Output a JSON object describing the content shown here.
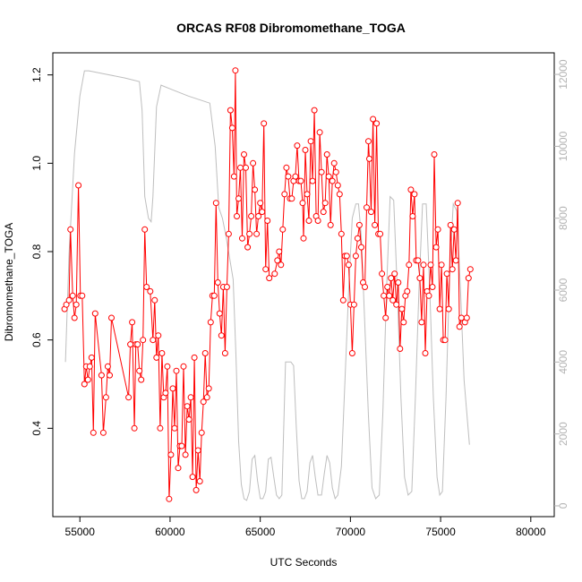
{
  "chart_data": {
    "type": "line",
    "title": "ORCAS RF08 Dibromomethane_TOGA",
    "xlabel": "UTC Seconds",
    "ylabel": "Dibromomethane_TOGA",
    "xlim": [
      53500,
      81300
    ],
    "ylim": [
      0.2,
      1.25
    ],
    "y2lim": [
      -300,
      12600
    ],
    "x_ticks": [
      55000,
      60000,
      65000,
      70000,
      75000,
      80000
    ],
    "y_ticks": [
      0.4,
      0.6,
      0.8,
      1.0,
      1.2
    ],
    "y2_ticks": [
      0,
      2000,
      4000,
      6000,
      8000,
      10000,
      12000
    ],
    "x_tick_labels": [
      "55000",
      "60000",
      "65000",
      "70000",
      "75000",
      "80000"
    ],
    "y_tick_labels": [
      "0.4",
      "0.6",
      "0.8",
      "1.0",
      "1.2"
    ],
    "y2_tick_labels": [
      "0",
      "2000",
      "4000",
      "6000",
      "8000",
      "10000",
      "12000"
    ],
    "grid": false,
    "colors": {
      "series": "#ff0000",
      "altitude": "#bebebe",
      "axes": "#000000",
      "right_axis": "#b3b3b3"
    },
    "series": [
      {
        "values": [
          [
            54150,
            0.67
          ],
          [
            54250,
            0.68
          ],
          [
            54400,
            0.69
          ],
          [
            54480,
            0.85
          ],
          [
            54600,
            0.7
          ],
          [
            54700,
            0.65
          ],
          [
            54800,
            0.68
          ],
          [
            54920,
            0.95
          ],
          [
            55030,
            0.7
          ],
          [
            55130,
            0.7
          ],
          [
            55250,
            0.5
          ],
          [
            55350,
            0.54
          ],
          [
            55450,
            0.51
          ],
          [
            55550,
            0.54
          ],
          [
            55650,
            0.56
          ],
          [
            55750,
            0.39
          ],
          [
            55850,
            0.66
          ],
          [
            56200,
            0.52
          ],
          [
            56300,
            0.39
          ],
          [
            56450,
            0.47
          ],
          [
            56550,
            0.54
          ],
          [
            56650,
            0.52
          ],
          [
            56750,
            0.65
          ],
          [
            57700,
            0.47
          ],
          [
            57800,
            0.59
          ],
          [
            57900,
            0.64
          ],
          [
            58020,
            0.4
          ],
          [
            58100,
            0.59
          ],
          [
            58200,
            0.59
          ],
          [
            58300,
            0.53
          ],
          [
            58400,
            0.51
          ],
          [
            58500,
            0.6
          ],
          [
            58600,
            0.85
          ],
          [
            58700,
            0.72
          ],
          [
            58900,
            0.71
          ],
          [
            59050,
            0.6
          ],
          [
            59150,
            0.69
          ],
          [
            59250,
            0.56
          ],
          [
            59350,
            0.61
          ],
          [
            59450,
            0.4
          ],
          [
            59550,
            0.57
          ],
          [
            59650,
            0.47
          ],
          [
            59750,
            0.48
          ],
          [
            59850,
            0.54
          ],
          [
            59950,
            0.24
          ],
          [
            60050,
            0.34
          ],
          [
            60150,
            0.49
          ],
          [
            60250,
            0.4
          ],
          [
            60350,
            0.53
          ],
          [
            60450,
            0.31
          ],
          [
            60550,
            0.36
          ],
          [
            60650,
            0.36
          ],
          [
            60750,
            0.54
          ],
          [
            60850,
            0.34
          ],
          [
            60950,
            0.45
          ],
          [
            61050,
            0.42
          ],
          [
            61150,
            0.47
          ],
          [
            61250,
            0.29
          ],
          [
            61350,
            0.56
          ],
          [
            61450,
            0.26
          ],
          [
            61550,
            0.35
          ],
          [
            61650,
            0.28
          ],
          [
            61750,
            0.39
          ],
          [
            61850,
            0.46
          ],
          [
            61950,
            0.57
          ],
          [
            62050,
            0.47
          ],
          [
            62150,
            0.49
          ],
          [
            62250,
            0.64
          ],
          [
            62350,
            0.7
          ],
          [
            62450,
            0.7
          ],
          [
            62550,
            0.91
          ],
          [
            62650,
            0.73
          ],
          [
            62750,
            0.66
          ],
          [
            62850,
            0.61
          ],
          [
            62950,
            0.72
          ],
          [
            63050,
            0.57
          ],
          [
            63150,
            0.72
          ],
          [
            63250,
            0.84
          ],
          [
            63350,
            1.12
          ],
          [
            63450,
            1.08
          ],
          [
            63550,
            0.97
          ],
          [
            63620,
            1.21
          ],
          [
            63700,
            0.88
          ],
          [
            63800,
            0.92
          ],
          [
            63900,
            0.99
          ],
          [
            64000,
            0.83
          ],
          [
            64100,
            1.02
          ],
          [
            64200,
            0.99
          ],
          [
            64300,
            0.81
          ],
          [
            64400,
            0.84
          ],
          [
            64500,
            0.88
          ],
          [
            64600,
            1.0
          ],
          [
            64700,
            0.94
          ],
          [
            64800,
            0.84
          ],
          [
            64900,
            0.88
          ],
          [
            65000,
            0.91
          ],
          [
            65100,
            0.89
          ],
          [
            65200,
            1.09
          ],
          [
            65300,
            0.76
          ],
          [
            65400,
            0.87
          ],
          [
            65500,
            0.74
          ],
          [
            65800,
            0.75
          ],
          [
            65950,
            0.78
          ],
          [
            66050,
            0.8
          ],
          [
            66150,
            0.77
          ],
          [
            66250,
            0.85
          ],
          [
            66350,
            0.93
          ],
          [
            66450,
            0.99
          ],
          [
            66550,
            0.97
          ],
          [
            66650,
            0.92
          ],
          [
            66750,
            0.92
          ],
          [
            66850,
            0.96
          ],
          [
            66950,
            0.97
          ],
          [
            67050,
            1.04
          ],
          [
            67150,
            0.96
          ],
          [
            67250,
            0.96
          ],
          [
            67350,
            0.91
          ],
          [
            67400,
            0.83
          ],
          [
            67500,
            1.03
          ],
          [
            67600,
            0.93
          ],
          [
            67700,
            0.87
          ],
          [
            67800,
            1.05
          ],
          [
            67900,
            0.96
          ],
          [
            68000,
            1.12
          ],
          [
            68100,
            0.88
          ],
          [
            68200,
            0.87
          ],
          [
            68300,
            1.07
          ],
          [
            68400,
            0.98
          ],
          [
            68500,
            0.89
          ],
          [
            68600,
            0.91
          ],
          [
            68700,
            1.02
          ],
          [
            68800,
            0.97
          ],
          [
            68900,
            0.86
          ],
          [
            69000,
            0.96
          ],
          [
            69100,
            1.0
          ],
          [
            69200,
            0.98
          ],
          [
            69300,
            0.95
          ],
          [
            69400,
            0.93
          ],
          [
            69500,
            0.84
          ],
          [
            69600,
            0.69
          ],
          [
            69700,
            0.79
          ],
          [
            69800,
            0.79
          ],
          [
            69900,
            0.77
          ],
          [
            70000,
            0.68
          ],
          [
            70100,
            0.57
          ],
          [
            70200,
            0.68
          ],
          [
            70300,
            0.79
          ],
          [
            70400,
            0.83
          ],
          [
            70500,
            0.86
          ],
          [
            70600,
            0.81
          ],
          [
            70700,
            0.73
          ],
          [
            70800,
            0.72
          ],
          [
            70900,
            0.9
          ],
          [
            71000,
            1.05
          ],
          [
            71050,
            1.01
          ],
          [
            71150,
            0.89
          ],
          [
            71250,
            1.1
          ],
          [
            71350,
            0.86
          ],
          [
            71450,
            1.09
          ],
          [
            71550,
            0.84
          ],
          [
            71650,
            0.84
          ],
          [
            71750,
            0.75
          ],
          [
            71850,
            0.7
          ],
          [
            71950,
            0.65
          ],
          [
            72050,
            0.72
          ],
          [
            72150,
            0.7
          ],
          [
            72250,
            0.74
          ],
          [
            72350,
            0.69
          ],
          [
            72450,
            0.75
          ],
          [
            72550,
            0.68
          ],
          [
            72650,
            0.73
          ],
          [
            72750,
            0.58
          ],
          [
            72850,
            0.67
          ],
          [
            72950,
            0.64
          ],
          [
            73050,
            0.7
          ],
          [
            73150,
            0.71
          ],
          [
            73250,
            0.77
          ],
          [
            73350,
            0.94
          ],
          [
            73450,
            0.88
          ],
          [
            73550,
            0.93
          ],
          [
            73650,
            0.78
          ],
          [
            73750,
            0.78
          ],
          [
            73850,
            0.74
          ],
          [
            73950,
            0.64
          ],
          [
            74050,
            0.77
          ],
          [
            74150,
            0.57
          ],
          [
            74250,
            0.71
          ],
          [
            74350,
            0.7
          ],
          [
            74450,
            0.77
          ],
          [
            74550,
            0.72
          ],
          [
            74650,
            1.02
          ],
          [
            74750,
            0.81
          ],
          [
            74850,
            0.85
          ],
          [
            74950,
            0.67
          ],
          [
            75050,
            0.77
          ],
          [
            75150,
            0.6
          ],
          [
            75250,
            0.6
          ],
          [
            75350,
            0.75
          ],
          [
            75450,
            0.67
          ],
          [
            75550,
            0.86
          ],
          [
            75650,
            0.76
          ],
          [
            75750,
            0.85
          ],
          [
            75850,
            0.78
          ],
          [
            75950,
            0.91
          ],
          [
            76050,
            0.63
          ],
          [
            76150,
            0.65
          ],
          [
            76350,
            0.64
          ],
          [
            76450,
            0.65
          ],
          [
            76550,
            0.74
          ],
          [
            76650,
            0.76
          ]
        ]
      }
    ],
    "altitude": {
      "values": [
        [
          54200,
          4000
        ],
        [
          54400,
          7000
        ],
        [
          54700,
          9800
        ],
        [
          55000,
          11400
        ],
        [
          55250,
          12100
        ],
        [
          55500,
          12100
        ],
        [
          56500,
          12000
        ],
        [
          57500,
          11900
        ],
        [
          58300,
          11800
        ],
        [
          58450,
          11000
        ],
        [
          58600,
          8600
        ],
        [
          58800,
          8000
        ],
        [
          58950,
          7900
        ],
        [
          59050,
          8600
        ],
        [
          59250,
          11100
        ],
        [
          59500,
          11700
        ],
        [
          60000,
          11600
        ],
        [
          61000,
          11400
        ],
        [
          62200,
          11200
        ],
        [
          62500,
          10000
        ],
        [
          62700,
          8300
        ],
        [
          62900,
          8000
        ],
        [
          63100,
          7500
        ],
        [
          63300,
          6900
        ],
        [
          63500,
          6300
        ],
        [
          63650,
          4200
        ],
        [
          63800,
          1800
        ],
        [
          63950,
          600
        ],
        [
          64100,
          200
        ],
        [
          64250,
          150
        ],
        [
          64400,
          400
        ],
        [
          64550,
          1300
        ],
        [
          64700,
          1400
        ],
        [
          64850,
          700
        ],
        [
          65000,
          200
        ],
        [
          65150,
          200
        ],
        [
          65300,
          400
        ],
        [
          65450,
          1300
        ],
        [
          65600,
          1350
        ],
        [
          65750,
          800
        ],
        [
          65900,
          300
        ],
        [
          66050,
          200
        ],
        [
          66200,
          300
        ],
        [
          66400,
          4000
        ],
        [
          66700,
          4000
        ],
        [
          66850,
          3900
        ],
        [
          67000,
          2200
        ],
        [
          67150,
          700
        ],
        [
          67300,
          200
        ],
        [
          67450,
          200
        ],
        [
          67600,
          400
        ],
        [
          67750,
          1200
        ],
        [
          67900,
          1400
        ],
        [
          68050,
          800
        ],
        [
          68200,
          300
        ],
        [
          68400,
          300
        ],
        [
          68550,
          900
        ],
        [
          68700,
          1400
        ],
        [
          68850,
          1200
        ],
        [
          69000,
          500
        ],
        [
          69150,
          200
        ],
        [
          69300,
          300
        ],
        [
          69500,
          1100
        ],
        [
          69700,
          3500
        ],
        [
          69900,
          6000
        ],
        [
          70100,
          8000
        ],
        [
          70300,
          8400
        ],
        [
          70450,
          8400
        ],
        [
          70600,
          7500
        ],
        [
          70800,
          5000
        ],
        [
          71000,
          2500
        ],
        [
          71200,
          500
        ],
        [
          71400,
          200
        ],
        [
          71600,
          300
        ],
        [
          71800,
          2600
        ],
        [
          72000,
          6000
        ],
        [
          72200,
          8600
        ],
        [
          72400,
          8500
        ],
        [
          72600,
          6000
        ],
        [
          72800,
          3000
        ],
        [
          73000,
          800
        ],
        [
          73200,
          300
        ],
        [
          73400,
          400
        ],
        [
          73600,
          3000
        ],
        [
          73800,
          6000
        ],
        [
          74000,
          8400
        ],
        [
          74200,
          8400
        ],
        [
          74400,
          6000
        ],
        [
          74600,
          3000
        ],
        [
          74800,
          800
        ],
        [
          74950,
          300
        ],
        [
          75100,
          400
        ],
        [
          75300,
          3000
        ],
        [
          75500,
          6500
        ],
        [
          75700,
          8400
        ],
        [
          75900,
          8200
        ],
        [
          76100,
          6000
        ],
        [
          76300,
          3500
        ],
        [
          76600,
          1700
        ]
      ]
    }
  }
}
